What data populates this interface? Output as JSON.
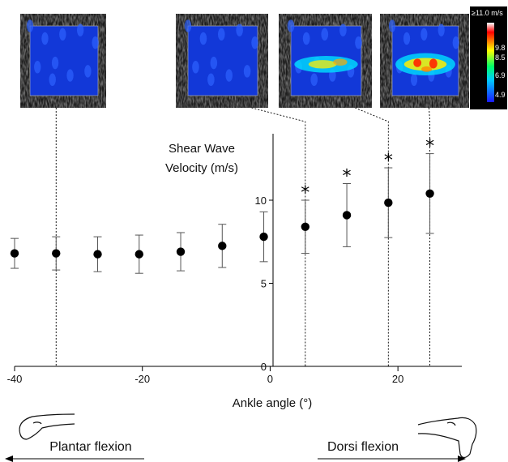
{
  "chart_data": {
    "type": "scatter",
    "title": "",
    "ylabel_lines": [
      "Shear Wave",
      "Velocity (m/s)"
    ],
    "xlabel": "Ankle angle (°)",
    "xlim": [
      -40,
      30
    ],
    "ylim": [
      0,
      14
    ],
    "x_ticks": [
      -40,
      -20,
      0,
      20
    ],
    "y_ticks": [
      0,
      5,
      10
    ],
    "error_bars": true,
    "grid": false,
    "series": [
      {
        "points": [
          {
            "x": -40,
            "y": 6.8,
            "err": 0.9,
            "significant": false
          },
          {
            "x": -33.5,
            "y": 6.8,
            "err": 1.0,
            "significant": false
          },
          {
            "x": -27,
            "y": 6.75,
            "err": 1.05,
            "significant": false
          },
          {
            "x": -20.5,
            "y": 6.75,
            "err": 1.15,
            "significant": false
          },
          {
            "x": -14,
            "y": 6.9,
            "err": 1.15,
            "significant": false
          },
          {
            "x": -7.5,
            "y": 7.25,
            "err": 1.3,
            "significant": false
          },
          {
            "x": -1,
            "y": 7.8,
            "err": 1.5,
            "significant": false
          },
          {
            "x": 5.5,
            "y": 8.4,
            "err": 1.6,
            "significant": true
          },
          {
            "x": 12,
            "y": 9.1,
            "err": 1.9,
            "significant": true
          },
          {
            "x": 18.5,
            "y": 9.85,
            "err": 2.1,
            "significant": true
          },
          {
            "x": 25,
            "y": 10.4,
            "err": 2.4,
            "significant": true
          }
        ]
      }
    ],
    "significance_marker": "*",
    "annotations": {
      "plantar_label": "Plantar flexion",
      "dorsi_label": "Dorsi flexion"
    },
    "elastography_insets": [
      {
        "angle": -33.5,
        "stiffness": "low"
      },
      {
        "angle": 5.5,
        "stiffness": "low"
      },
      {
        "angle": 18.5,
        "stiffness": "medium"
      },
      {
        "angle": 25,
        "stiffness": "high"
      }
    ],
    "colorbar": {
      "unit": "m/s",
      "labels": [
        "≥11.0 m/s",
        "9.8",
        "8.5",
        "6.9",
        "4.9"
      ],
      "colors": [
        "#ffffff",
        "#ff0000",
        "#ffff00",
        "#00ff66",
        "#00ccff",
        "#1a1aff"
      ]
    }
  }
}
